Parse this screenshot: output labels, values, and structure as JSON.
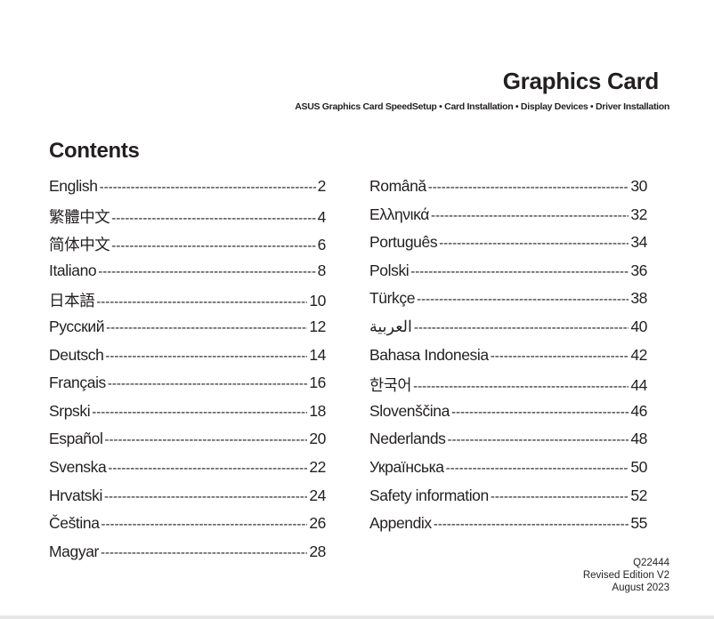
{
  "header": {
    "title": "Graphics Card",
    "subtitle": "ASUS Graphics Card SpeedSetup • Card Installation • Display Devices • Driver Installation"
  },
  "contents_heading": "Contents",
  "toc_left": [
    {
      "label": "English",
      "page": "2"
    },
    {
      "label": "繁體中文",
      "page": "4"
    },
    {
      "label": "简体中文",
      "page": "6"
    },
    {
      "label": "Italiano",
      "page": "8"
    },
    {
      "label": "日本語",
      "page": "10"
    },
    {
      "label": "Русский",
      "page": "12"
    },
    {
      "label": "Deutsch",
      "page": "14"
    },
    {
      "label": "Français",
      "page": "16"
    },
    {
      "label": "Srpski",
      "page": "18"
    },
    {
      "label": "Español",
      "page": "20"
    },
    {
      "label": "Svenska",
      "page": "22"
    },
    {
      "label": "Hrvatski",
      "page": "24"
    },
    {
      "label": "Čeština",
      "page": "26"
    },
    {
      "label": "Magyar",
      "page": "28"
    }
  ],
  "toc_right": [
    {
      "label": "Română",
      "page": "30"
    },
    {
      "label": "Ελληνικά",
      "page": "32"
    },
    {
      "label": "Português",
      "page": "34"
    },
    {
      "label": "Polski",
      "page": "36"
    },
    {
      "label": "Türkçe",
      "page": "38"
    },
    {
      "label": "العربية",
      "page": "40"
    },
    {
      "label": "Bahasa Indonesia",
      "page": "42"
    },
    {
      "label": "한국어",
      "page": "44"
    },
    {
      "label": "Slovenščina",
      "page": "46"
    },
    {
      "label": "Nederlands",
      "page": "48"
    },
    {
      "label": "Українська",
      "page": "50"
    },
    {
      "label": "Safety information",
      "page": "52"
    },
    {
      "label": "Appendix",
      "page": "55"
    }
  ],
  "footer": {
    "code": "Q22444",
    "edition": "Revised Edition V2",
    "date": "August 2023"
  }
}
